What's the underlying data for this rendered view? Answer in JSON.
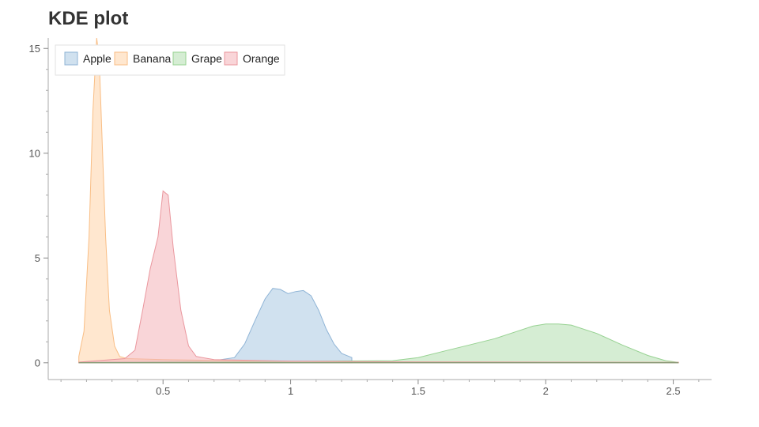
{
  "chart_data": {
    "type": "area",
    "title": "KDE plot",
    "xlabel": "",
    "ylabel": "",
    "xlim": [
      0.05,
      2.65
    ],
    "ylim": [
      -0.8,
      15.5
    ],
    "x_ticks": [
      0.5,
      1,
      1.5,
      2,
      2.5
    ],
    "x_tick_labels": [
      "0.5",
      "1",
      "1.5",
      "2",
      "2.5"
    ],
    "y_ticks": [
      0,
      5,
      10,
      15
    ],
    "y_tick_labels": [
      "0",
      "5",
      "10",
      "15"
    ],
    "grid": false,
    "legend_position": "top-left",
    "series": [
      {
        "name": "Apple",
        "color": "#aac8e2",
        "stroke": "#8fb4d6",
        "x": [
          0.17,
          0.7,
          0.78,
          0.82,
          0.86,
          0.9,
          0.93,
          0.96,
          0.99,
          1.02,
          1.05,
          1.08,
          1.11,
          1.14,
          1.17,
          1.2,
          1.24
        ],
        "y": [
          0.03,
          0.1,
          0.25,
          0.9,
          2.0,
          3.05,
          3.55,
          3.5,
          3.3,
          3.4,
          3.45,
          3.2,
          2.5,
          1.6,
          0.9,
          0.45,
          0.25
        ]
      },
      {
        "name": "Banana",
        "color": "#ffd4a8",
        "stroke": "#f9be85",
        "x": [
          0.17,
          0.19,
          0.21,
          0.225,
          0.24,
          0.25,
          0.26,
          0.275,
          0.29,
          0.31,
          0.33,
          0.36,
          0.5,
          0.8,
          1.2,
          2.52
        ],
        "y": [
          0.3,
          1.5,
          6.0,
          12.0,
          15.5,
          14.5,
          11.0,
          6.0,
          2.5,
          0.8,
          0.3,
          0.2,
          0.15,
          0.1,
          0.05,
          0.02
        ]
      },
      {
        "name": "Grape",
        "color": "#b2dfae",
        "stroke": "#97d292",
        "x": [
          0.17,
          0.8,
          1.4,
          1.5,
          1.6,
          1.7,
          1.8,
          1.9,
          1.95,
          2.0,
          2.05,
          2.1,
          2.2,
          2.3,
          2.4,
          2.47,
          2.52
        ],
        "y": [
          0.0,
          0.05,
          0.1,
          0.25,
          0.55,
          0.85,
          1.15,
          1.55,
          1.75,
          1.85,
          1.85,
          1.8,
          1.4,
          0.85,
          0.35,
          0.1,
          0.02
        ]
      },
      {
        "name": "Orange",
        "color": "#f4b3b8",
        "stroke": "#ea979e",
        "x": [
          0.17,
          0.35,
          0.39,
          0.42,
          0.45,
          0.48,
          0.5,
          0.52,
          0.54,
          0.57,
          0.6,
          0.63,
          0.7,
          1.0,
          1.5,
          2.52
        ],
        "y": [
          0.03,
          0.2,
          0.6,
          2.5,
          4.5,
          6.0,
          8.2,
          8.0,
          5.5,
          2.5,
          0.8,
          0.3,
          0.15,
          0.08,
          0.04,
          0.02
        ]
      }
    ]
  }
}
